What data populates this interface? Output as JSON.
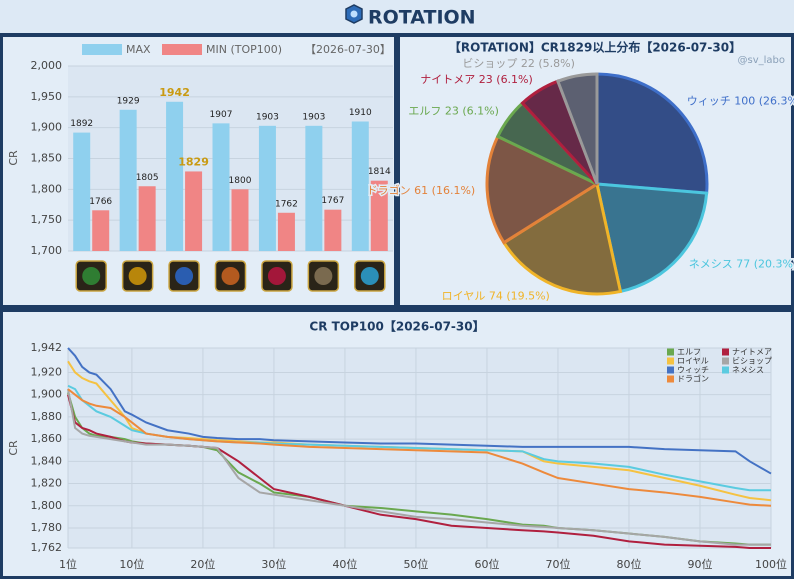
{
  "header": {
    "title": "ROTATION"
  },
  "chart_data": [
    {
      "type": "bar",
      "date": "【2026-07-30】",
      "y_label": "CR",
      "categories": [
        null,
        null,
        null,
        null,
        null,
        null,
        null
      ],
      "series": [
        {
          "name": "MAX",
          "color": "#8fd0ee",
          "values": [
            1892,
            1929,
            1942,
            1907,
            1903,
            1903,
            1910
          ]
        },
        {
          "name": "MIN (TOP100)",
          "color": "#f08585",
          "values": [
            1766,
            1805,
            1829,
            1800,
            1762,
            1767,
            1814
          ]
        }
      ],
      "ylim": [
        1700,
        2000
      ],
      "yticks": [
        {
          "value": 1700,
          "label": "1,700"
        },
        {
          "value": 1750,
          "label": "1,750"
        },
        {
          "value": 1800,
          "label": "1,800"
        },
        {
          "value": 1850,
          "label": "1,850"
        },
        {
          "value": 1900,
          "label": "1,900"
        },
        {
          "value": 1950,
          "label": "1,950"
        },
        {
          "value": 2000,
          "label": "2,000"
        }
      ],
      "grid": true
    },
    {
      "type": "pie",
      "title": "【ROTATION】CR1829以上分布【2026-07-30】",
      "watermark": "@sv_labo",
      "values": [
        100,
        77,
        74,
        61,
        23,
        23,
        22
      ],
      "value_labels": [
        "ウィッチ 100 (26.3%)",
        "ネメシス 77 (20.3%)",
        "ロイヤル 74 (19.5%)",
        "ドラゴン 61 (16.1%)",
        "エルフ 23 (6.1%)",
        "ナイトメア 23 (6.1%)",
        "ビショップ 22 (5.8%)"
      ],
      "colors": [
        "#3f6fc9",
        "#4cc6de",
        "#f0b429",
        "#e3823a",
        "#6aa84f",
        "#b0203f",
        "#9a9a9a"
      ]
    },
    {
      "type": "line",
      "title": "CR TOP100【2026-07-30】",
      "y_label": "CR",
      "x": [
        1,
        2,
        3,
        4,
        5,
        7,
        9,
        10,
        12,
        15,
        18,
        20,
        22,
        25,
        28,
        30,
        35,
        40,
        45,
        50,
        55,
        60,
        65,
        68,
        70,
        75,
        80,
        85,
        90,
        95,
        97,
        100
      ],
      "series": [
        {
          "name": "エルフ",
          "color": "#6aa84f",
          "values": [
            1902,
            1880,
            1870,
            1865,
            1863,
            1862,
            1860,
            1858,
            1856,
            1855,
            1854,
            1853,
            1850,
            1830,
            1820,
            1812,
            1808,
            1800,
            1798,
            1795,
            1792,
            1788,
            1783,
            1782,
            1780,
            1778,
            1775,
            1772,
            1768,
            1766,
            1765,
            1765
          ]
        },
        {
          "name": "ナイトメア",
          "color": "#b0203f",
          "values": [
            1900,
            1875,
            1870,
            1868,
            1865,
            1862,
            1858,
            1857,
            1856,
            1855,
            1854,
            1853,
            1852,
            1840,
            1825,
            1815,
            1808,
            1800,
            1792,
            1788,
            1782,
            1780,
            1778,
            1777,
            1776,
            1773,
            1768,
            1765,
            1764,
            1763,
            1762,
            1762
          ]
        },
        {
          "name": "ロイヤル",
          "color": "#f5c242",
          "values": [
            1930,
            1920,
            1915,
            1912,
            1910,
            1895,
            1880,
            1870,
            1865,
            1862,
            1861,
            1860,
            1859,
            1858,
            1857,
            1857,
            1855,
            1854,
            1853,
            1852,
            1851,
            1850,
            1849,
            1840,
            1838,
            1835,
            1832,
            1825,
            1818,
            1810,
            1807,
            1805
          ]
        },
        {
          "name": "ビショップ",
          "color": "#a6a6a6",
          "values": [
            1905,
            1870,
            1865,
            1863,
            1862,
            1860,
            1858,
            1857,
            1855,
            1855,
            1854,
            1853,
            1852,
            1825,
            1812,
            1810,
            1805,
            1800,
            1795,
            1790,
            1788,
            1785,
            1782,
            1781,
            1780,
            1778,
            1775,
            1772,
            1768,
            1765,
            1765,
            1765
          ]
        },
        {
          "name": "ウィッチ",
          "color": "#4472c4",
          "values": [
            1942,
            1935,
            1925,
            1920,
            1918,
            1905,
            1885,
            1882,
            1875,
            1868,
            1865,
            1862,
            1861,
            1860,
            1860,
            1859,
            1858,
            1857,
            1856,
            1856,
            1855,
            1854,
            1853,
            1853,
            1853,
            1853,
            1853,
            1851,
            1850,
            1849,
            1840,
            1829
          ]
        },
        {
          "name": "ネメシス",
          "color": "#5bcbe0",
          "values": [
            1908,
            1905,
            1895,
            1890,
            1885,
            1880,
            1872,
            1868,
            1865,
            1862,
            1860,
            1859,
            1858,
            1857,
            1857,
            1856,
            1855,
            1854,
            1853,
            1852,
            1851,
            1850,
            1849,
            1842,
            1840,
            1838,
            1835,
            1828,
            1822,
            1816,
            1814,
            1814
          ]
        },
        {
          "name": "ドラゴン",
          "color": "#ed8a3c",
          "values": [
            1905,
            1900,
            1895,
            1892,
            1890,
            1888,
            1880,
            1875,
            1865,
            1862,
            1860,
            1859,
            1858,
            1857,
            1856,
            1855,
            1853,
            1852,
            1851,
            1850,
            1849,
            1848,
            1838,
            1830,
            1825,
            1820,
            1815,
            1812,
            1808,
            1803,
            1801,
            1800
          ]
        }
      ],
      "xlim": [
        1,
        100
      ],
      "xticks": [
        {
          "value": 1,
          "label": "1位"
        },
        {
          "value": 10,
          "label": "10位"
        },
        {
          "value": 20,
          "label": "20位"
        },
        {
          "value": 30,
          "label": "30位"
        },
        {
          "value": 40,
          "label": "40位"
        },
        {
          "value": 50,
          "label": "50位"
        },
        {
          "value": 60,
          "label": "60位"
        },
        {
          "value": 70,
          "label": "70位"
        },
        {
          "value": 80,
          "label": "80位"
        },
        {
          "value": 90,
          "label": "90位"
        },
        {
          "value": 100,
          "label": "100位"
        }
      ],
      "ylim": [
        1762,
        1942
      ],
      "yticks": [
        {
          "value": 1762,
          "label": "1,762"
        },
        {
          "value": 1780,
          "label": "1,780"
        },
        {
          "value": 1800,
          "label": "1,800"
        },
        {
          "value": 1820,
          "label": "1,820"
        },
        {
          "value": 1840,
          "label": "1,840"
        },
        {
          "value": 1860,
          "label": "1,860"
        },
        {
          "value": 1880,
          "label": "1,880"
        },
        {
          "value": 1900,
          "label": "1,900"
        },
        {
          "value": 1920,
          "label": "1,920"
        },
        {
          "value": 1942,
          "label": "1,942"
        }
      ],
      "grid": true
    }
  ]
}
